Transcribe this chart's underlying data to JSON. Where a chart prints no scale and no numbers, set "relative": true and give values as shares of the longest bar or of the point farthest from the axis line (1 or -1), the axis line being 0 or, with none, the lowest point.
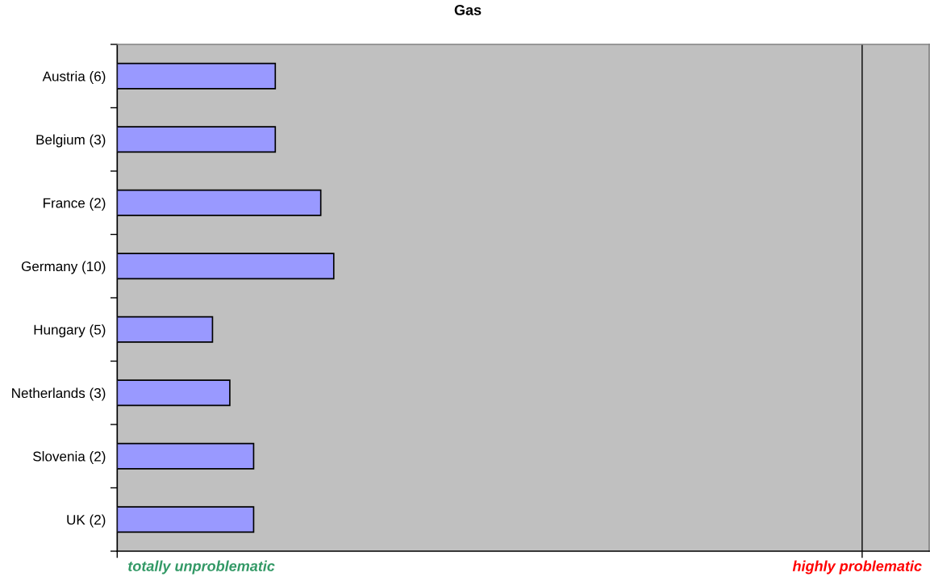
{
  "chart_data": {
    "type": "bar",
    "orientation": "horizontal",
    "relative": true,
    "title": "Gas",
    "categories": [
      "Austria (6)",
      "Belgium (3)",
      "France (2)",
      "Germany (10)",
      "Hungary (5)",
      "Netherlands (3)",
      "Slovenia (2)",
      "UK (2)"
    ],
    "values": [
      0.73,
      0.73,
      0.94,
      1,
      0.44,
      0.52,
      0.63,
      0.63
    ],
    "color": "#9999ff",
    "ref_lines": [
      {
        "axis": "x",
        "value": 3.44,
        "color": "#000000"
      }
    ],
    "annotations": [
      "totally unproblematic",
      "highly problematic"
    ]
  }
}
